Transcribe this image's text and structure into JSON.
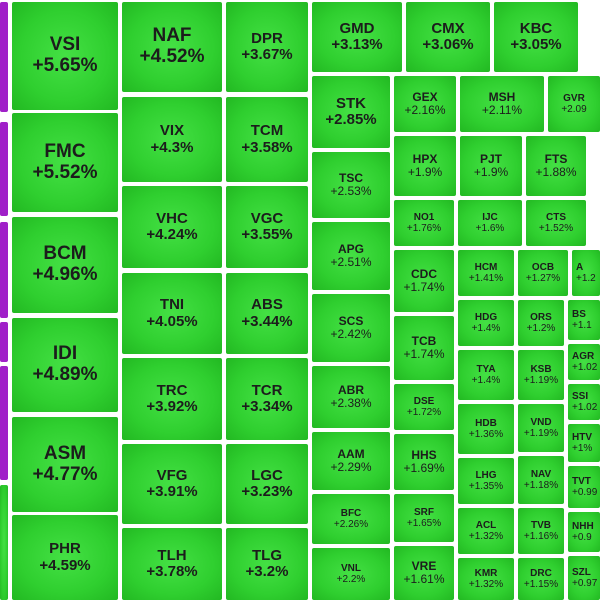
{
  "tiles": [
    {
      "ticker": "VSI",
      "change": "+5.65%"
    },
    {
      "ticker": "FMC",
      "change": "+5.52%"
    },
    {
      "ticker": "BCM",
      "change": "+4.96%"
    },
    {
      "ticker": "IDI",
      "change": "+4.89%"
    },
    {
      "ticker": "ASM",
      "change": "+4.77%"
    },
    {
      "ticker": "PHR",
      "change": "+4.59%"
    },
    {
      "ticker": "NAF",
      "change": "+4.52%"
    },
    {
      "ticker": "VIX",
      "change": "+4.3%"
    },
    {
      "ticker": "VHC",
      "change": "+4.24%"
    },
    {
      "ticker": "TNI",
      "change": "+4.05%"
    },
    {
      "ticker": "TRC",
      "change": "+3.92%"
    },
    {
      "ticker": "VFG",
      "change": "+3.91%"
    },
    {
      "ticker": "TLH",
      "change": "+3.78%"
    },
    {
      "ticker": "DPR",
      "change": "+3.67%"
    },
    {
      "ticker": "TCM",
      "change": "+3.58%"
    },
    {
      "ticker": "VGC",
      "change": "+3.55%"
    },
    {
      "ticker": "ABS",
      "change": "+3.44%"
    },
    {
      "ticker": "TCR",
      "change": "+3.34%"
    },
    {
      "ticker": "LGC",
      "change": "+3.23%"
    },
    {
      "ticker": "TLG",
      "change": "+3.2%"
    },
    {
      "ticker": "GMD",
      "change": "+3.13%"
    },
    {
      "ticker": "CMX",
      "change": "+3.06%"
    },
    {
      "ticker": "KBC",
      "change": "+3.05%"
    },
    {
      "ticker": "STK",
      "change": "+2.85%"
    },
    {
      "ticker": "TSC",
      "change": "+2.53%"
    },
    {
      "ticker": "APG",
      "change": "+2.51%"
    },
    {
      "ticker": "SCS",
      "change": "+2.42%"
    },
    {
      "ticker": "ABR",
      "change": "+2.38%"
    },
    {
      "ticker": "AAM",
      "change": "+2.29%"
    },
    {
      "ticker": "BFC",
      "change": "+2.26%"
    },
    {
      "ticker": "VNL",
      "change": "+2.2%"
    },
    {
      "ticker": "GEX",
      "change": "+2.16%"
    },
    {
      "ticker": "MSH",
      "change": "+2.11%"
    },
    {
      "ticker": "GVR",
      "change": "+2.09"
    },
    {
      "ticker": "HPX",
      "change": "+1.9%"
    },
    {
      "ticker": "PJT",
      "change": "+1.9%"
    },
    {
      "ticker": "FTS",
      "change": "+1.88%"
    },
    {
      "ticker": "NO1",
      "change": "+1.76%"
    },
    {
      "ticker": "IJC",
      "change": "+1.6%"
    },
    {
      "ticker": "CTS",
      "change": "+1.52%"
    },
    {
      "ticker": "CDC",
      "change": "+1.74%"
    },
    {
      "ticker": "TCB",
      "change": "+1.74%"
    },
    {
      "ticker": "DSE",
      "change": "+1.72%"
    },
    {
      "ticker": "HHS",
      "change": "+1.69%"
    },
    {
      "ticker": "SRF",
      "change": "+1.65%"
    },
    {
      "ticker": "VRE",
      "change": "+1.61%"
    },
    {
      "ticker": "HCM",
      "change": "+1.41%"
    },
    {
      "ticker": "OCB",
      "change": "+1.27%"
    },
    {
      "ticker": "A",
      "change": "+1.2"
    },
    {
      "ticker": "HDG",
      "change": "+1.4%"
    },
    {
      "ticker": "ORS",
      "change": "+1.2%"
    },
    {
      "ticker": "BS",
      "change": "+1.1"
    },
    {
      "ticker": "TYA",
      "change": "+1.4%"
    },
    {
      "ticker": "KSB",
      "change": "+1.19%"
    },
    {
      "ticker": "AGR",
      "change": "+1.02"
    },
    {
      "ticker": "HDB",
      "change": "+1.36%"
    },
    {
      "ticker": "VND",
      "change": "+1.19%"
    },
    {
      "ticker": "SSI",
      "change": "+1.02"
    },
    {
      "ticker": "LHG",
      "change": "+1.35%"
    },
    {
      "ticker": "NAV",
      "change": "+1.18%"
    },
    {
      "ticker": "HTV",
      "change": "+1%"
    },
    {
      "ticker": "ACL",
      "change": "+1.32%"
    },
    {
      "ticker": "TVB",
      "change": "+1.16%"
    },
    {
      "ticker": "TVT",
      "change": "+0.99"
    },
    {
      "ticker": "KMR",
      "change": "+1.32%"
    },
    {
      "ticker": "DRC",
      "change": "+1.15%"
    },
    {
      "ticker": "NHH",
      "change": "+0.9"
    },
    {
      "ticker": "SZL",
      "change": "+0.97"
    }
  ]
}
